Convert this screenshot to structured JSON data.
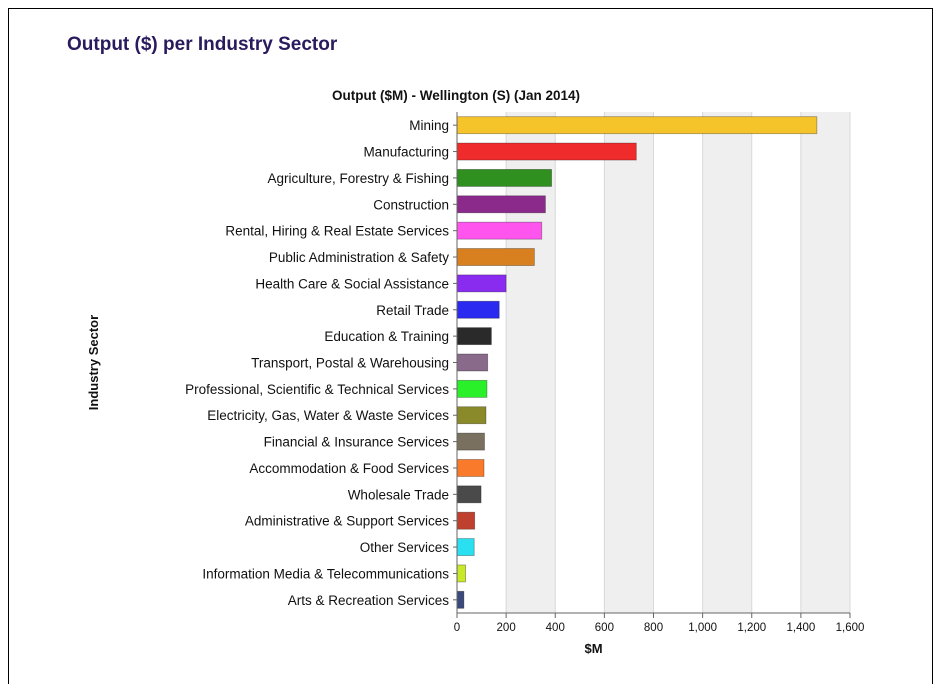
{
  "page": {
    "title": "Output ($) per Industry Sector"
  },
  "chart_data": {
    "type": "bar",
    "orientation": "horizontal",
    "title": "Output ($M) - Wellington (S) (Jan 2014)",
    "xlabel": "$M",
    "ylabel": "Industry Sector",
    "xlim": [
      0,
      1600
    ],
    "xticks": [
      "0",
      "200",
      "400",
      "600",
      "800",
      "1,000",
      "1,200",
      "1,400",
      "1,600"
    ],
    "xtick_values": [
      0,
      200,
      400,
      600,
      800,
      1000,
      1200,
      1400,
      1600
    ],
    "grid": "vertical alternating bands",
    "categories": [
      "Mining",
      "Manufacturing",
      "Agriculture, Forestry & Fishing",
      "Construction",
      "Rental, Hiring & Real Estate Services",
      "Public Administration & Safety",
      "Health Care & Social Assistance",
      "Retail Trade",
      "Education & Training",
      "Transport, Postal & Warehousing",
      "Professional, Scientific & Technical Services",
      "Electricity, Gas, Water & Waste Services",
      "Financial & Insurance Services",
      "Accommodation & Food Services",
      "Wholesale Trade",
      "Administrative & Support Services",
      "Other Services",
      "Information Media & Telecommunications",
      "Arts & Recreation Services"
    ],
    "values": [
      1465,
      730,
      385,
      360,
      345,
      315,
      200,
      172,
      140,
      125,
      122,
      118,
      112,
      110,
      98,
      72,
      70,
      35,
      28
    ],
    "colors": [
      "#f5c32a",
      "#f02b2b",
      "#2f8f1f",
      "#8c2a8c",
      "#ff55ee",
      "#d88020",
      "#8a2cf0",
      "#2a2af0",
      "#2a2a2a",
      "#8a6a8a",
      "#2af02a",
      "#8a8a2a",
      "#7a7060",
      "#f87a2a",
      "#4a4a4a",
      "#c04030",
      "#2ae0f0",
      "#c8e82a",
      "#3a4a7a"
    ]
  }
}
